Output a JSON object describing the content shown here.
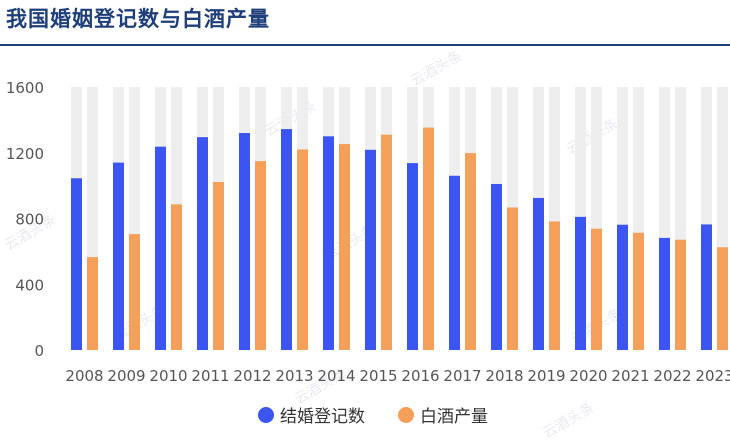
{
  "title": "我国婚姻登记数与白酒产量",
  "watermark": "云酒头条",
  "colors": {
    "marriage": "#3c55f0",
    "baijiu": "#f5a05a",
    "track": "#eeeeee",
    "axis_text": "#555555",
    "title": "#1f3f7a"
  },
  "chart_data": {
    "type": "bar",
    "categories": [
      "2008",
      "2009",
      "2010",
      "2011",
      "2012",
      "2013",
      "2014",
      "2015",
      "2016",
      "2017",
      "2018",
      "2019",
      "2020",
      "2021",
      "2022",
      "2023"
    ],
    "series": [
      {
        "name": "结婚登记数",
        "values": [
          1045,
          1140,
          1237,
          1295,
          1320,
          1344,
          1300,
          1218,
          1137,
          1060,
          1010,
          925,
          810,
          762,
          682,
          764
        ]
      },
      {
        "name": "白酒产量",
        "values": [
          565,
          705,
          886,
          1022,
          1149,
          1220,
          1253,
          1310,
          1353,
          1198,
          867,
          782,
          738,
          713,
          671,
          625
        ]
      }
    ],
    "yticks": [
      0,
      400,
      800,
      1200,
      1600
    ],
    "ylim": [
      0,
      1600
    ],
    "grid": false,
    "legend_position": "bottom-center"
  }
}
